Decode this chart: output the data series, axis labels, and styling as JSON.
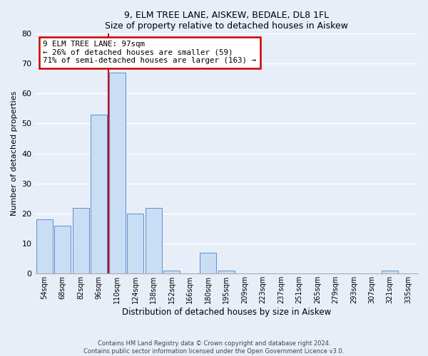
{
  "title": "9, ELM TREE LANE, AISKEW, BEDALE, DL8 1FL",
  "subtitle": "Size of property relative to detached houses in Aiskew",
  "xlabel": "Distribution of detached houses by size in Aiskew",
  "ylabel": "Number of detached properties",
  "bar_labels": [
    "54sqm",
    "68sqm",
    "82sqm",
    "96sqm",
    "110sqm",
    "124sqm",
    "138sqm",
    "152sqm",
    "166sqm",
    "180sqm",
    "195sqm",
    "209sqm",
    "223sqm",
    "237sqm",
    "251sqm",
    "265sqm",
    "279sqm",
    "293sqm",
    "307sqm",
    "321sqm",
    "335sqm"
  ],
  "bar_values": [
    18,
    16,
    22,
    53,
    67,
    20,
    22,
    1,
    0,
    7,
    1,
    0,
    0,
    0,
    0,
    0,
    0,
    0,
    0,
    1,
    0
  ],
  "bar_color": "#c9ddf5",
  "bar_edge_color": "#5b8fcc",
  "vline_color": "#cc0000",
  "ylim": [
    0,
    80
  ],
  "yticks": [
    0,
    10,
    20,
    30,
    40,
    50,
    60,
    70,
    80
  ],
  "annotation_title": "9 ELM TREE LANE: 97sqm",
  "annotation_line1": "← 26% of detached houses are smaller (59)",
  "annotation_line2": "71% of semi-detached houses are larger (163) →",
  "annotation_box_color": "#cc0000",
  "footer_line1": "Contains HM Land Registry data © Crown copyright and database right 2024.",
  "footer_line2": "Contains public sector information licensed under the Open Government Licence v3.0.",
  "bg_color": "#e8eef8",
  "plot_bg_color": "#e8eef8",
  "grid_color": "#ffffff"
}
